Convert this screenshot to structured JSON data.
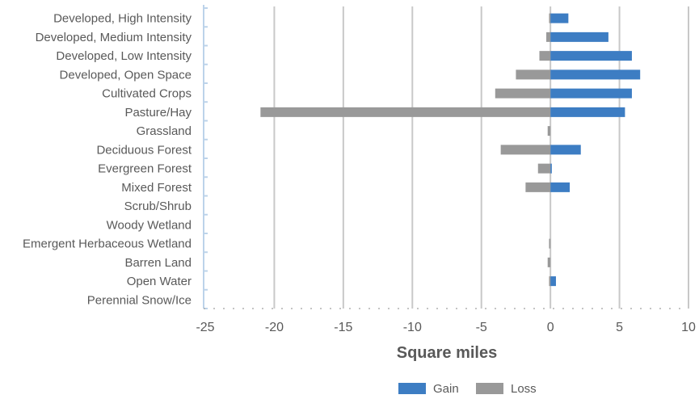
{
  "chart_data": {
    "type": "bar",
    "orientation": "horizontal",
    "stacked": false,
    "categories": [
      "Developed, High Intensity",
      "Developed, Medium Intensity",
      "Developed, Low Intensity",
      "Developed, Open Space",
      "Cultivated Crops",
      "Pasture/Hay",
      "Grassland",
      "Deciduous Forest",
      "Evergreen Forest",
      "Mixed Forest",
      "Scrub/Shrub",
      "Woody Wetland",
      "Emergent Herbaceous Wetland",
      "Barren Land",
      "Open Water",
      "Perennial Snow/Ice"
    ],
    "series": [
      {
        "name": "Gain",
        "color": "#3d7dc3",
        "values": [
          1.3,
          4.2,
          5.9,
          6.5,
          5.9,
          5.4,
          0,
          2.2,
          0.1,
          1.4,
          0,
          0,
          0,
          0,
          0.4,
          0
        ]
      },
      {
        "name": "Loss",
        "color": "#999999",
        "values": [
          -0.1,
          -0.3,
          -0.8,
          -2.5,
          -4.0,
          -21.0,
          -0.2,
          -3.6,
          -0.9,
          -1.8,
          0,
          0,
          -0.1,
          -0.2,
          -0.1,
          0
        ]
      }
    ],
    "x_ticks": [
      -25,
      -20,
      -15,
      -10,
      -5,
      0,
      5,
      10
    ],
    "xlim": [
      -25,
      10
    ],
    "xlabel": "Square miles",
    "ylabel": "",
    "title": "",
    "grid": "vertical",
    "legend": "bottom"
  }
}
